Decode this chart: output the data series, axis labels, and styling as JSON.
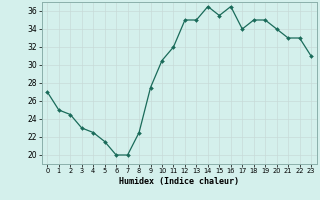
{
  "x": [
    0,
    1,
    2,
    3,
    4,
    5,
    6,
    7,
    8,
    9,
    10,
    11,
    12,
    13,
    14,
    15,
    16,
    17,
    18,
    19,
    20,
    21,
    22,
    23
  ],
  "y": [
    27,
    25,
    24.5,
    23,
    22.5,
    21.5,
    20,
    20,
    22.5,
    27.5,
    30.5,
    32,
    35,
    35,
    36.5,
    35.5,
    36.5,
    34,
    35,
    35,
    34,
    33,
    33,
    31
  ],
  "line_color": "#1a6b5a",
  "marker_color": "#1a6b5a",
  "bg_color": "#d4f0ec",
  "grid_color": "#c8dbd8",
  "xlabel": "Humidex (Indice chaleur)",
  "ylim": [
    19,
    37
  ],
  "xlim": [
    -0.5,
    23.5
  ],
  "yticks": [
    20,
    22,
    24,
    26,
    28,
    30,
    32,
    34,
    36
  ],
  "xticks": [
    0,
    1,
    2,
    3,
    4,
    5,
    6,
    7,
    8,
    9,
    10,
    11,
    12,
    13,
    14,
    15,
    16,
    17,
    18,
    19,
    20,
    21,
    22,
    23
  ]
}
